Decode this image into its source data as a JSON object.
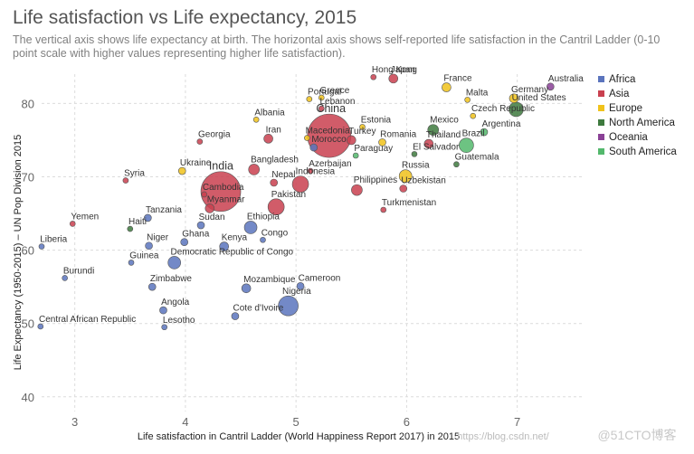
{
  "header": {
    "title": "Life satisfaction vs Life expectancy, 2015",
    "subtitle": "The vertical axis shows life expectancy at birth. The horizontal axis shows self-reported life satisfaction in the Cantril Ladder (0-10 point scale with higher values representing higher life satisfaction)."
  },
  "watermark": {
    "url": "https://blog.csdn.net/",
    "brand": "@51CTO博客"
  },
  "chart_data": {
    "type": "scatter",
    "xlabel": "Life satisfaction in Cantril Ladder (World Happiness Report 2017) in 2015",
    "ylabel": "Life Expectancy (1950-2015) – UN Pop Division 2015",
    "xlim": [
      2.7,
      7.6
    ],
    "ylim": [
      38,
      84
    ],
    "xticks": [
      "3",
      "4",
      "5",
      "6",
      "7"
    ],
    "yticks": [
      "40",
      "50",
      "60",
      "70",
      "80"
    ],
    "grid": true,
    "legend": "right",
    "colors": {
      "Africa": "#5b74bd",
      "Asia": "#c9404f",
      "Europe": "#f0c21b",
      "North America": "#3e7a3e",
      "Oceania": "#8a4196",
      "South America": "#53b86c"
    },
    "series": [
      {
        "name": "Africa"
      },
      {
        "name": "Asia"
      },
      {
        "name": "Europe"
      },
      {
        "name": "North America"
      },
      {
        "name": "Oceania"
      },
      {
        "name": "South America"
      }
    ],
    "points": [
      {
        "label": "Hong Kong",
        "x": 5.7,
        "y": 83.6,
        "region": "Asia",
        "size": 3
      },
      {
        "label": "Japan",
        "x": 5.88,
        "y": 83.4,
        "region": "Asia",
        "size": 5
      },
      {
        "label": "France",
        "x": 6.36,
        "y": 82.2,
        "region": "Europe",
        "size": 5
      },
      {
        "label": "Australia",
        "x": 7.3,
        "y": 82.3,
        "region": "Oceania",
        "size": 4
      },
      {
        "label": "Germany",
        "x": 6.97,
        "y": 80.7,
        "region": "Europe",
        "size": 5
      },
      {
        "label": "Malta",
        "x": 6.55,
        "y": 80.5,
        "region": "Europe",
        "size": 3
      },
      {
        "label": "United States",
        "x": 6.99,
        "y": 79.2,
        "region": "North America",
        "size": 8
      },
      {
        "label": "Czech Republic",
        "x": 6.6,
        "y": 78.3,
        "region": "Europe",
        "size": 3
      },
      {
        "label": "Greece",
        "x": 5.23,
        "y": 80.8,
        "region": "Europe",
        "size": 3
      },
      {
        "label": "Portugal",
        "x": 5.12,
        "y": 80.6,
        "region": "Europe",
        "size": 3
      },
      {
        "label": "Lebanon",
        "x": 5.23,
        "y": 79.3,
        "region": "Asia",
        "size": 3
      },
      {
        "label": "Albania",
        "x": 4.64,
        "y": 77.8,
        "region": "Europe",
        "size": 3
      },
      {
        "label": "China",
        "x": 5.3,
        "y": 75.6,
        "region": "Asia",
        "size": 24
      },
      {
        "label": "Estonia",
        "x": 5.6,
        "y": 76.8,
        "region": "Europe",
        "size": 3
      },
      {
        "label": "Mexico",
        "x": 6.24,
        "y": 76.4,
        "region": "North America",
        "size": 6
      },
      {
        "label": "Argentina",
        "x": 6.7,
        "y": 76.1,
        "region": "South America",
        "size": 4
      },
      {
        "label": "Iran",
        "x": 4.75,
        "y": 75.2,
        "region": "Asia",
        "size": 5
      },
      {
        "label": "Macedonia",
        "x": 5.1,
        "y": 75.3,
        "region": "Europe",
        "size": 3
      },
      {
        "label": "Turkey",
        "x": 5.5,
        "y": 75.0,
        "region": "Asia",
        "size": 5
      },
      {
        "label": "Romania",
        "x": 5.78,
        "y": 74.7,
        "region": "Europe",
        "size": 4
      },
      {
        "label": "Thailand",
        "x": 6.2,
        "y": 74.5,
        "region": "Asia",
        "size": 5
      },
      {
        "label": "Brazil",
        "x": 6.54,
        "y": 74.3,
        "region": "South America",
        "size": 8
      },
      {
        "label": "Georgia",
        "x": 4.13,
        "y": 74.8,
        "region": "Asia",
        "size": 3
      },
      {
        "label": "Morocco",
        "x": 5.16,
        "y": 74.0,
        "region": "Africa",
        "size": 4
      },
      {
        "label": "Paraguay",
        "x": 5.54,
        "y": 72.9,
        "region": "South America",
        "size": 3
      },
      {
        "label": "El Salvador",
        "x": 6.07,
        "y": 73.1,
        "region": "North America",
        "size": 3
      },
      {
        "label": "Bangladesh",
        "x": 4.62,
        "y": 71.0,
        "region": "Asia",
        "size": 6
      },
      {
        "label": "Azerbaijan",
        "x": 5.13,
        "y": 70.8,
        "region": "Asia",
        "size": 3
      },
      {
        "label": "Guatemala",
        "x": 6.45,
        "y": 71.7,
        "region": "North America",
        "size": 3
      },
      {
        "label": "Ukraine",
        "x": 3.97,
        "y": 70.8,
        "region": "Europe",
        "size": 4
      },
      {
        "label": "Russia",
        "x": 5.99,
        "y": 70.1,
        "region": "Europe",
        "size": 7
      },
      {
        "label": "Syria",
        "x": 3.46,
        "y": 69.5,
        "region": "Asia",
        "size": 3
      },
      {
        "label": "India",
        "x": 4.32,
        "y": 68.0,
        "region": "Asia",
        "size": 22
      },
      {
        "label": "Nepal",
        "x": 4.8,
        "y": 69.2,
        "region": "Asia",
        "size": 4
      },
      {
        "label": "Indonesia",
        "x": 5.04,
        "y": 69.0,
        "region": "Asia",
        "size": 9
      },
      {
        "label": "Philippines",
        "x": 5.55,
        "y": 68.2,
        "region": "Asia",
        "size": 6
      },
      {
        "label": "Uzbekistan",
        "x": 5.97,
        "y": 68.4,
        "region": "Asia",
        "size": 4
      },
      {
        "label": "Cambodia",
        "x": 4.17,
        "y": 67.6,
        "region": "Asia",
        "size": 3
      },
      {
        "label": "Myanmar",
        "x": 4.22,
        "y": 65.7,
        "region": "Asia",
        "size": 5
      },
      {
        "label": "Pakistan",
        "x": 4.82,
        "y": 65.9,
        "region": "Asia",
        "size": 9
      },
      {
        "label": "Turkmenistan",
        "x": 5.79,
        "y": 65.5,
        "region": "Asia",
        "size": 3
      },
      {
        "label": "Yemen",
        "x": 2.98,
        "y": 63.6,
        "region": "Asia",
        "size": 3
      },
      {
        "label": "Tanzania",
        "x": 3.66,
        "y": 64.4,
        "region": "Africa",
        "size": 4
      },
      {
        "label": "Sudan",
        "x": 4.14,
        "y": 63.4,
        "region": "Africa",
        "size": 4
      },
      {
        "label": "Ethiopia",
        "x": 4.59,
        "y": 63.1,
        "region": "Africa",
        "size": 7
      },
      {
        "label": "Haiti",
        "x": 3.5,
        "y": 62.9,
        "region": "North America",
        "size": 3
      },
      {
        "label": "Congo",
        "x": 4.7,
        "y": 61.4,
        "region": "Africa",
        "size": 3
      },
      {
        "label": "Niger",
        "x": 3.67,
        "y": 60.6,
        "region": "Africa",
        "size": 4
      },
      {
        "label": "Ghana",
        "x": 3.99,
        "y": 61.1,
        "region": "Africa",
        "size": 4
      },
      {
        "label": "Kenya",
        "x": 4.35,
        "y": 60.5,
        "region": "Africa",
        "size": 5
      },
      {
        "label": "Liberia",
        "x": 2.7,
        "y": 60.5,
        "region": "Africa",
        "size": 3
      },
      {
        "label": "Guinea",
        "x": 3.51,
        "y": 58.3,
        "region": "Africa",
        "size": 3
      },
      {
        "label": "Democratic Republic of Congo",
        "x": 3.9,
        "y": 58.3,
        "region": "Africa",
        "size": 7
      },
      {
        "label": "Burundi",
        "x": 2.91,
        "y": 56.2,
        "region": "Africa",
        "size": 3
      },
      {
        "label": "Zimbabwe",
        "x": 3.7,
        "y": 55.0,
        "region": "Africa",
        "size": 4
      },
      {
        "label": "Mozambique",
        "x": 4.55,
        "y": 54.8,
        "region": "Africa",
        "size": 5
      },
      {
        "label": "Cameroon",
        "x": 5.04,
        "y": 55.1,
        "region": "Africa",
        "size": 4
      },
      {
        "label": "Nigeria",
        "x": 4.93,
        "y": 52.4,
        "region": "Africa",
        "size": 11
      },
      {
        "label": "Angola",
        "x": 3.8,
        "y": 51.8,
        "region": "Africa",
        "size": 4
      },
      {
        "label": "Cote d'Ivoire",
        "x": 4.45,
        "y": 51.0,
        "region": "Africa",
        "size": 4
      },
      {
        "label": "Central African Republic",
        "x": 2.69,
        "y": 49.6,
        "region": "Africa",
        "size": 3
      },
      {
        "label": "Lesotho",
        "x": 3.81,
        "y": 49.5,
        "region": "Africa",
        "size": 3
      }
    ]
  }
}
